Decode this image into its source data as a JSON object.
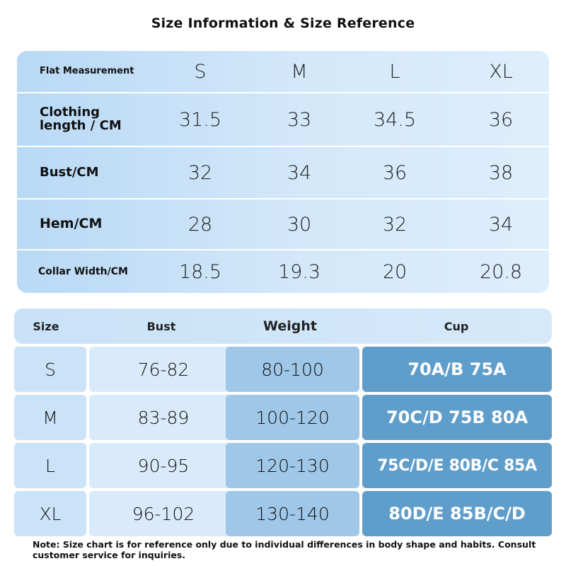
{
  "title": "Size Information & Size Reference",
  "flat_table": {
    "header_label": "Flat Measurement",
    "sizes": [
      "S",
      "M",
      "L",
      "XL"
    ],
    "rows": [
      {
        "label_line1": "Clothing",
        "label_line2": "length / CM",
        "values": [
          "31.5",
          "33",
          "34.5",
          "36"
        ]
      },
      {
        "label_line1": "Bust/CM",
        "label_line2": "",
        "values": [
          "32",
          "34",
          "36",
          "38"
        ]
      },
      {
        "label_line1": "Hem/CM",
        "label_line2": "",
        "values": [
          "28",
          "30",
          "32",
          "34"
        ]
      },
      {
        "label_line1": "Collar Width/CM",
        "label_line2": "",
        "values": [
          "18.5",
          "19.3",
          "20",
          "20.8"
        ]
      }
    ]
  },
  "ref_table": {
    "headers": [
      "Size",
      "Bust",
      "Weight",
      "Cup"
    ],
    "rows": [
      {
        "size": "S",
        "bust": "76-82",
        "weight": "80-100",
        "cup": "70A/B 75A"
      },
      {
        "size": "M",
        "bust": "83-89",
        "weight": "100-120",
        "cup": "70C/D 75B 80A"
      },
      {
        "size": "L",
        "bust": "90-95",
        "weight": "120-130",
        "cup": "75C/D/E 80B/C 85A"
      },
      {
        "size": "XL",
        "bust": "96-102",
        "weight": "130-140",
        "cup": "80D/E 85B/C/D"
      }
    ]
  },
  "note": "Note: Size chart is for reference only due to individual differences in body shape and habits. Consult customer service for inquiries."
}
